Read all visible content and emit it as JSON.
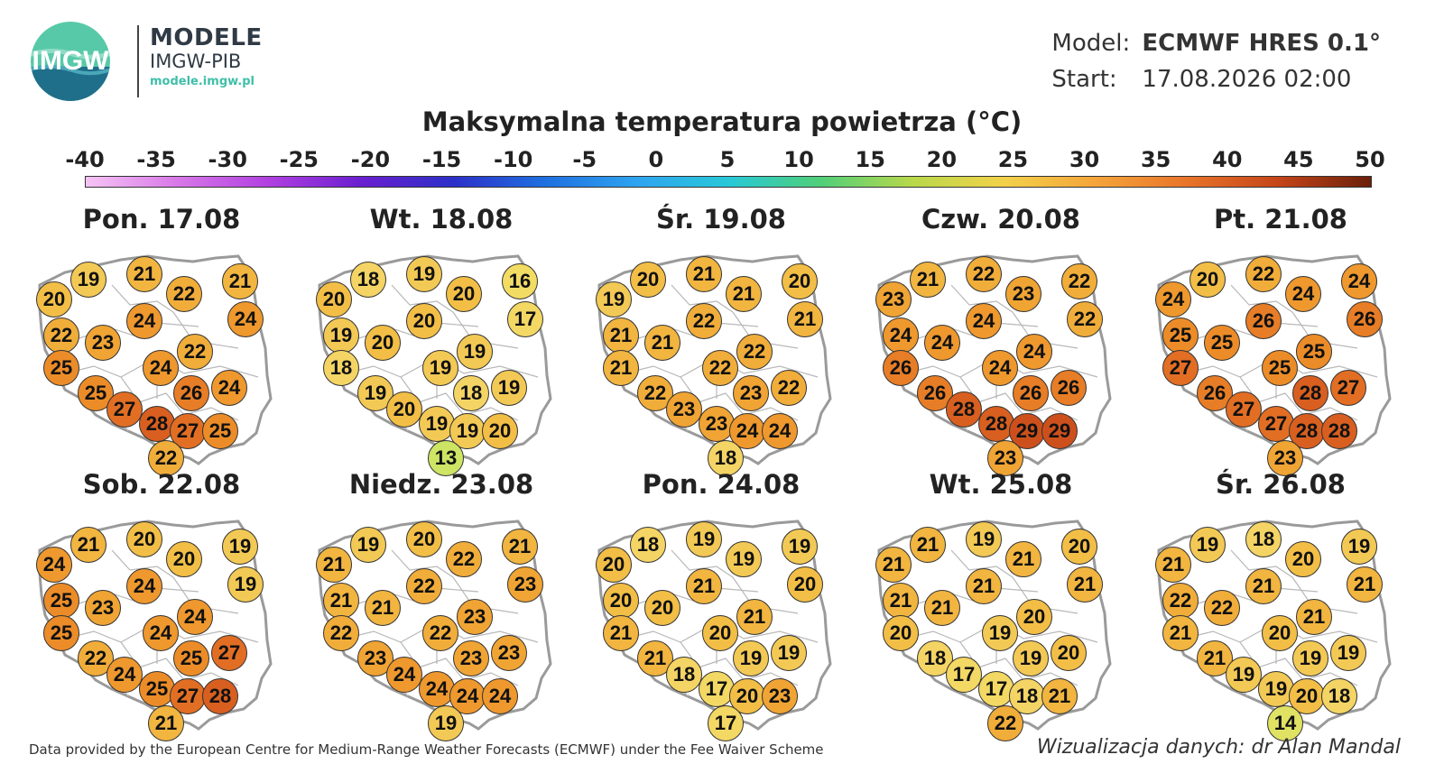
{
  "header": {
    "logo_text": "IMGW",
    "brand_line1": "MODELE",
    "brand_line2": "IMGW-PIB",
    "brand_url": "modele.imgw.pl",
    "model_label": "Model:",
    "model_value": "ECMWF HRES 0.1°",
    "start_label": "Start:",
    "start_value": "17.08.2026 02:00"
  },
  "title": "Maksymalna temperatura powietrza (°C)",
  "scale": {
    "ticks": [
      "-40",
      "-35",
      "-30",
      "-25",
      "-20",
      "-15",
      "-10",
      "-5",
      "0",
      "5",
      "10",
      "15",
      "20",
      "25",
      "30",
      "35",
      "40",
      "45",
      "50"
    ]
  },
  "days": [
    {
      "date": "Pon. 17.08",
      "values": [
        20,
        19,
        21,
        22,
        21,
        24,
        22,
        23,
        24,
        22,
        25,
        24,
        25,
        26,
        24,
        27,
        28,
        27,
        25,
        22
      ]
    },
    {
      "date": "Wt. 18.08",
      "values": [
        20,
        18,
        19,
        20,
        16,
        17,
        19,
        20,
        20,
        19,
        18,
        19,
        19,
        18,
        19,
        20,
        19,
        19,
        20,
        13
      ]
    },
    {
      "date": "Śr. 19.08",
      "values": [
        19,
        20,
        21,
        21,
        20,
        21,
        21,
        21,
        22,
        22,
        21,
        22,
        22,
        23,
        22,
        23,
        23,
        24,
        24,
        18
      ]
    },
    {
      "date": "Czw. 20.08",
      "values": [
        23,
        21,
        22,
        23,
        22,
        22,
        24,
        24,
        24,
        24,
        26,
        24,
        26,
        26,
        26,
        28,
        28,
        29,
        29,
        23
      ]
    },
    {
      "date": "Pt. 21.08",
      "values": [
        24,
        20,
        22,
        24,
        24,
        26,
        25,
        25,
        26,
        25,
        27,
        25,
        26,
        28,
        27,
        27,
        27,
        28,
        28,
        23
      ]
    },
    {
      "date": "Sob. 22.08",
      "values": [
        24,
        21,
        20,
        20,
        19,
        19,
        25,
        23,
        24,
        24,
        25,
        24,
        22,
        25,
        27,
        24,
        25,
        27,
        28,
        21
      ]
    },
    {
      "date": "Niedz. 23.08",
      "values": [
        21,
        19,
        20,
        22,
        21,
        23,
        21,
        21,
        22,
        23,
        22,
        22,
        23,
        23,
        23,
        24,
        24,
        24,
        24,
        19
      ]
    },
    {
      "date": "Pon. 24.08",
      "values": [
        20,
        18,
        19,
        19,
        19,
        20,
        20,
        20,
        21,
        21,
        21,
        20,
        21,
        19,
        19,
        18,
        17,
        20,
        23,
        17
      ]
    },
    {
      "date": "Wt. 25.08",
      "values": [
        21,
        21,
        19,
        21,
        20,
        21,
        21,
        21,
        21,
        20,
        20,
        19,
        18,
        19,
        20,
        17,
        17,
        18,
        21,
        22
      ]
    },
    {
      "date": "Śr. 26.08",
      "values": [
        21,
        19,
        18,
        20,
        19,
        21,
        22,
        22,
        21,
        21,
        21,
        20,
        21,
        19,
        19,
        19,
        19,
        20,
        18,
        14
      ]
    }
  ],
  "credits": {
    "left": "Data provided by the European Centre for Medium-Range Weather Forecasts (ECMWF) under the Fee Waiver Scheme",
    "right": "Wizualizacja danych: dr Alan Mandal"
  }
}
